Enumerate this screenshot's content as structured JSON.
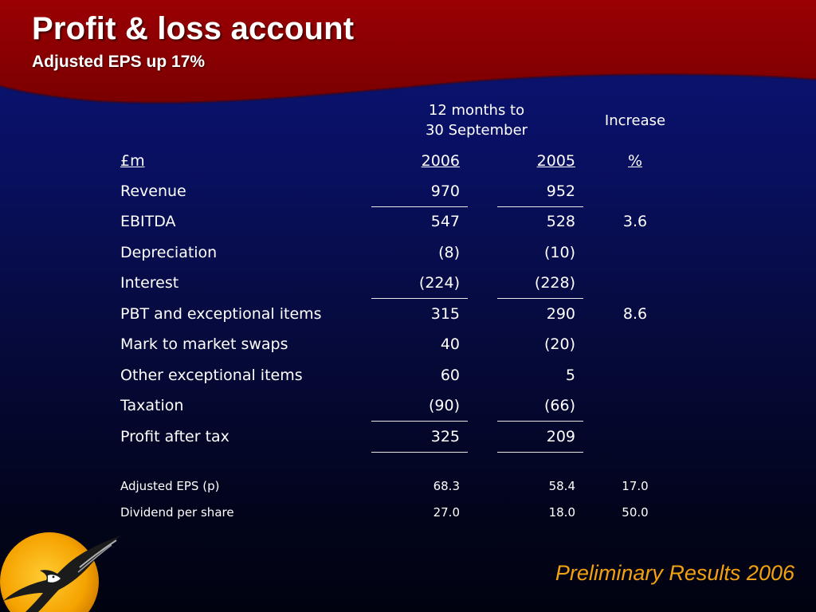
{
  "header": {
    "title": "Profit & loss account",
    "subtitle": "Adjusted EPS up 17%"
  },
  "table": {
    "period_header": [
      "12 months to",
      "30 September"
    ],
    "increase_header": "Increase",
    "columns": {
      "unit": "£m",
      "year1": "2006",
      "year2": "2005",
      "pct": "%"
    },
    "rows": [
      {
        "label": "Revenue",
        "v2006": "970",
        "v2005": "952",
        "increase": ""
      },
      {
        "label": "EBITDA",
        "v2006": "547",
        "v2005": "528",
        "increase": "3.6"
      },
      {
        "label": "Depreciation",
        "v2006": "(8)",
        "v2005": "(10)",
        "increase": ""
      },
      {
        "label": "Interest",
        "v2006": "(224)",
        "v2005": "(228)",
        "increase": ""
      },
      {
        "label": "PBT and exceptional items",
        "v2006": "315",
        "v2005": "290",
        "increase": "8.6"
      },
      {
        "label": "Mark to market swaps",
        "v2006": "40",
        "v2005": "(20)",
        "increase": ""
      },
      {
        "label": "Other exceptional items",
        "v2006": "60",
        "v2005": "5",
        "increase": ""
      },
      {
        "label": "Taxation",
        "v2006": "(90)",
        "v2005": "(66)",
        "increase": ""
      },
      {
        "label": "Profit after tax",
        "v2006": "325",
        "v2005": "209",
        "increase": ""
      }
    ],
    "per_share": [
      {
        "label": "Adjusted EPS (p)",
        "v2006": "68.3",
        "v2005": "58.4",
        "increase": "17.0"
      },
      {
        "label": "Dividend per share",
        "v2006": "27.0",
        "v2005": "18.0",
        "increase": "50.0"
      }
    ]
  },
  "footer": {
    "text": "Preliminary Results 2006"
  },
  "colors": {
    "header_band": "#8b0000",
    "background_top": "#0a1478",
    "background_bottom": "#010210",
    "text": "#ffffff",
    "footer_text": "#f3a10f",
    "logo_sun": "#f5a300"
  },
  "icons": {
    "logo": "eagle-sun-logo-icon"
  }
}
